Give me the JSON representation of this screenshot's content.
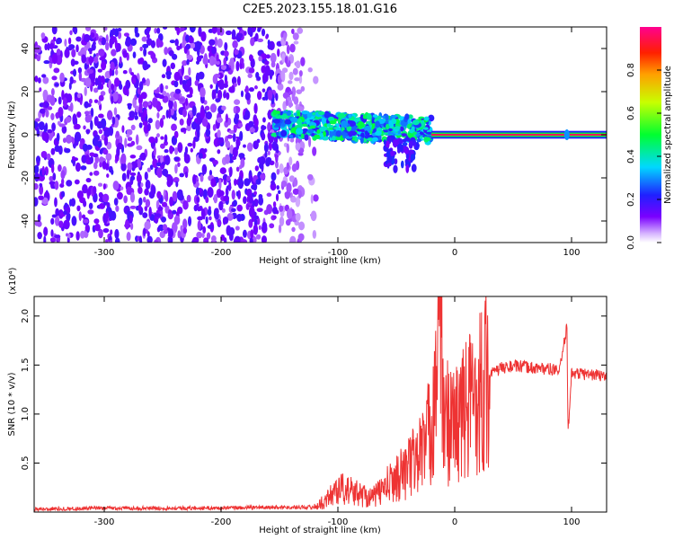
{
  "title": "C2E5.2023.155.18.01.G16",
  "chart_data": [
    {
      "type": "heatmap",
      "xlabel": "Height of straight line (km)",
      "ylabel": "Frequency (Hz)",
      "xlim": [
        -360,
        130
      ],
      "ylim": [
        -50,
        50
      ],
      "xticks": [
        -300,
        -200,
        -100,
        0,
        100
      ],
      "yticks": [
        -40,
        -20,
        0,
        20,
        40
      ],
      "colorbar": {
        "label": "Normalized spectral amplitude",
        "range": [
          0,
          1
        ],
        "ticks": [
          "0.0",
          "0.2",
          "0.4",
          "0.6",
          "0.8"
        ]
      },
      "regions": [
        {
          "x": [
            -360,
            -130
          ],
          "freq": [
            -50,
            50
          ],
          "amplitude": 0.12,
          "pattern": "noise"
        },
        {
          "x": [
            -155,
            -20
          ],
          "freq": [
            -8,
            10
          ],
          "amplitude": 0.35,
          "pattern": "broadband"
        },
        {
          "x": [
            -20,
            130
          ],
          "freq": [
            -1,
            1
          ],
          "amplitude": 0.95,
          "pattern": "tone at 0 Hz"
        }
      ]
    },
    {
      "type": "line",
      "xlabel": "Height of straight line (km)",
      "ylabel": "SNR (10 * v/v)",
      "yscale_note": "(x10⁴)",
      "xlim": [
        -360,
        130
      ],
      "ylim": [
        0,
        2.2
      ],
      "xticks": [
        -300,
        -200,
        -100,
        0,
        100
      ],
      "yticks": [
        "0.5",
        "1.0",
        "1.5",
        "2.0"
      ],
      "color": "#ee3333",
      "series": [
        {
          "x": [
            -360,
            -300,
            -200,
            -150,
            -120,
            -110,
            -100,
            -80,
            -70,
            -50,
            -40,
            -30,
            -20,
            -12,
            -10,
            0,
            10,
            20,
            30,
            40,
            50,
            60,
            70,
            80,
            90,
            96,
            97,
            100,
            110,
            120,
            130
          ],
          "y": [
            0.03,
            0.04,
            0.04,
            0.05,
            0.05,
            0.12,
            0.25,
            0.18,
            0.15,
            0.35,
            0.45,
            0.6,
            0.85,
            2.2,
            0.95,
            0.9,
            1.05,
            1.25,
            1.4,
            1.47,
            1.49,
            1.48,
            1.47,
            1.46,
            1.44,
            1.9,
            0.8,
            1.42,
            1.41,
            1.4,
            1.38
          ]
        }
      ]
    }
  ]
}
